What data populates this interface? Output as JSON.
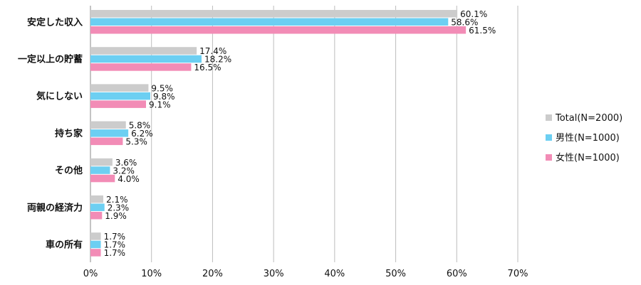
{
  "chart_data": {
    "type": "bar",
    "orientation": "horizontal",
    "categories": [
      "安定した収入",
      "一定以上の貯蓄",
      "気にしない",
      "持ち家",
      "その他",
      "両親の経済力",
      "車の所有"
    ],
    "series": [
      {
        "name": "Total(N=2000)",
        "color": "#cccccc",
        "values": [
          60.1,
          17.4,
          9.5,
          5.8,
          3.6,
          2.1,
          1.7
        ]
      },
      {
        "name": "男性(N=1000)",
        "color": "#6ccff2",
        "values": [
          58.6,
          18.2,
          9.8,
          6.2,
          3.2,
          2.3,
          1.7
        ]
      },
      {
        "name": "女性(N=1000)",
        "color": "#f28cb6",
        "values": [
          61.5,
          16.5,
          9.1,
          5.3,
          4.0,
          1.9,
          1.7
        ]
      }
    ],
    "x_ticks": [
      "0%",
      "10%",
      "20%",
      "30%",
      "40%",
      "50%",
      "60%",
      "70%"
    ],
    "xlim": [
      0,
      70
    ],
    "value_format": "percent_1dp",
    "grid": "vertical",
    "legend": "right"
  }
}
